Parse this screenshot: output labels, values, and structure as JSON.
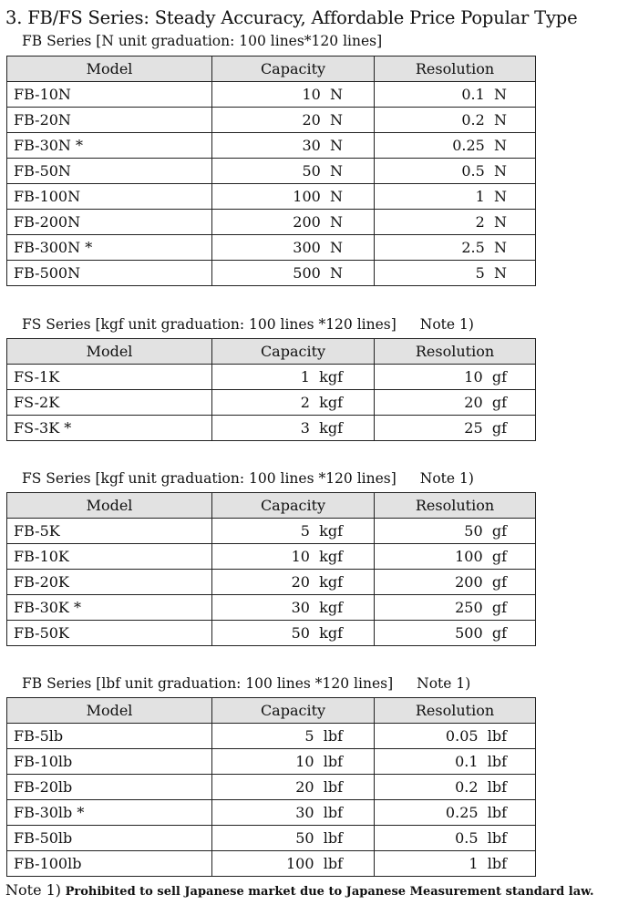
{
  "title": "3. FB/FS Series: Steady Accuracy, Affordable Price Popular Type",
  "columns": [
    "Model",
    "Capacity",
    "Resolution"
  ],
  "tables": [
    {
      "heading": "FB Series [N unit graduation: 100 lines*120 lines]",
      "note": "",
      "rows": [
        [
          "FB-10N",
          "10  N",
          "0.1  N"
        ],
        [
          "FB-20N",
          "20  N",
          "0.2  N"
        ],
        [
          "FB-30N *",
          "30  N",
          "0.25  N"
        ],
        [
          "FB-50N",
          "50  N",
          "0.5  N"
        ],
        [
          "FB-100N",
          "100  N",
          "1  N"
        ],
        [
          "FB-200N",
          "200  N",
          "2  N"
        ],
        [
          "FB-300N *",
          "300  N",
          "2.5  N"
        ],
        [
          "FB-500N",
          "500  N",
          "5  N"
        ]
      ]
    },
    {
      "heading": "FS Series [kgf unit graduation: 100 lines *120 lines]",
      "note": "Note 1)",
      "rows": [
        [
          "FS-1K",
          "1  kgf",
          "10  gf"
        ],
        [
          "FS-2K",
          "2  kgf",
          "20  gf"
        ],
        [
          "FS-3K *",
          "3  kgf",
          "25  gf"
        ]
      ]
    },
    {
      "heading": "FS Series [kgf unit graduation: 100 lines *120 lines]",
      "note": "Note 1)",
      "rows": [
        [
          "FB-5K",
          "5  kgf",
          "50  gf"
        ],
        [
          "FB-10K",
          "10  kgf",
          "100  gf"
        ],
        [
          "FB-20K",
          "20  kgf",
          "200  gf"
        ],
        [
          "FB-30K *",
          "30  kgf",
          "250  gf"
        ],
        [
          "FB-50K",
          "50  kgf",
          "500  gf"
        ]
      ]
    },
    {
      "heading": "FB Series [lbf unit graduation: 100 lines *120 lines]",
      "note": "Note 1)",
      "rows": [
        [
          "FB-5lb",
          "5  lbf",
          "0.05  lbf"
        ],
        [
          "FB-10lb",
          "10  lbf",
          "0.1  lbf"
        ],
        [
          "FB-20lb",
          "20  lbf",
          "0.2  lbf"
        ],
        [
          "FB-30lb *",
          "30  lbf",
          "0.25  lbf"
        ],
        [
          "FB-50lb",
          "50  lbf",
          "0.5  lbf"
        ],
        [
          "FB-100lb",
          "100  lbf",
          "1  lbf"
        ]
      ]
    }
  ],
  "footnote": {
    "label": "Note 1)",
    "text": " Prohibited to sell Japanese market due to Japanese Measurement standard law."
  }
}
